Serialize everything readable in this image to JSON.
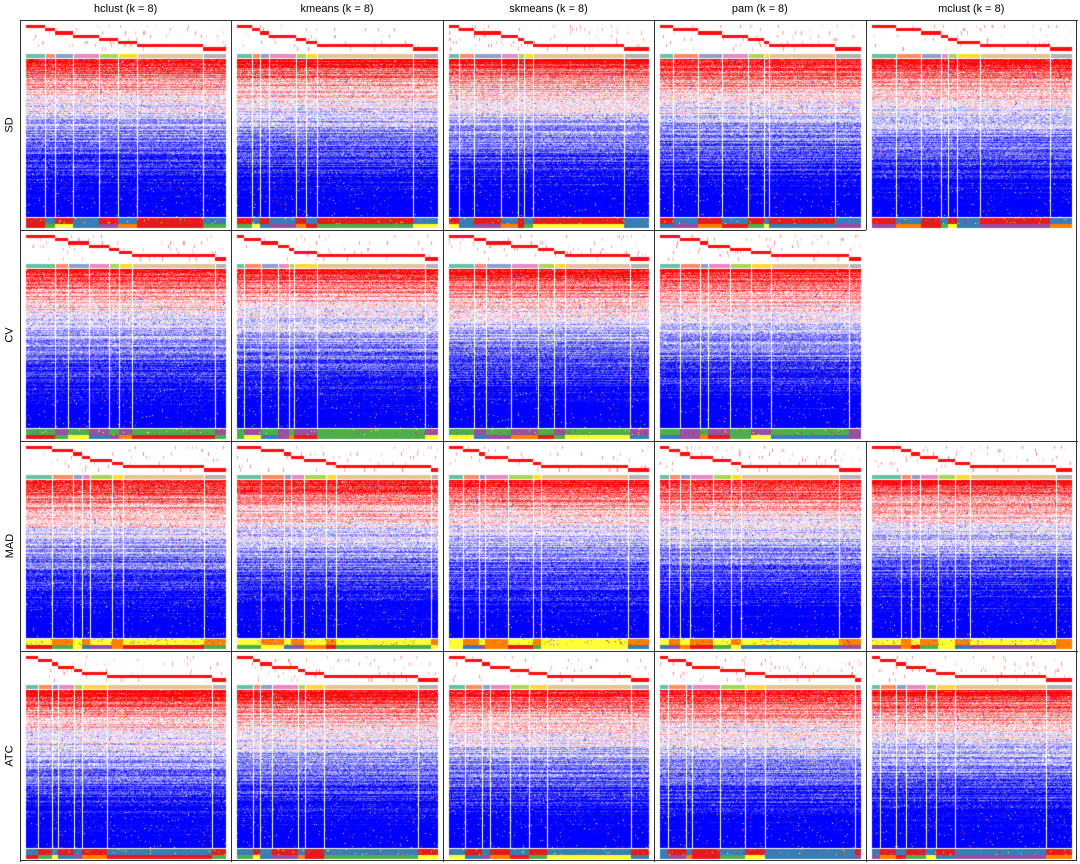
{
  "chart_data": {
    "type": "heatmap",
    "title": "",
    "columns": [
      "hclust (k = 8)",
      "kmeans (k = 8)",
      "skmeans (k = 8)",
      "pam (k = 8)",
      "mclust (k = 8)"
    ],
    "rows": [
      "SD",
      "CV",
      "MAD",
      "ATC"
    ],
    "k": 8,
    "present": [
      [
        true,
        true,
        true,
        true,
        true
      ],
      [
        true,
        true,
        true,
        true,
        false
      ],
      [
        true,
        true,
        true,
        true,
        true
      ],
      [
        true,
        true,
        true,
        true,
        true
      ]
    ],
    "color_scale": {
      "low": "#0000FF",
      "mid": "#FFFFFF",
      "high": "#FF0000"
    },
    "class_colors": [
      "#66C2A5",
      "#FC8D62",
      "#8DA0CB",
      "#E78AC3",
      "#A6D854",
      "#FFD92F",
      "#E5C494",
      "#B3B3B3"
    ],
    "annotation_colors": [
      "#E41A1C",
      "#4DAF4A",
      "#FFFF33",
      "#377EB8",
      "#984EA3",
      "#FF7F00"
    ]
  }
}
